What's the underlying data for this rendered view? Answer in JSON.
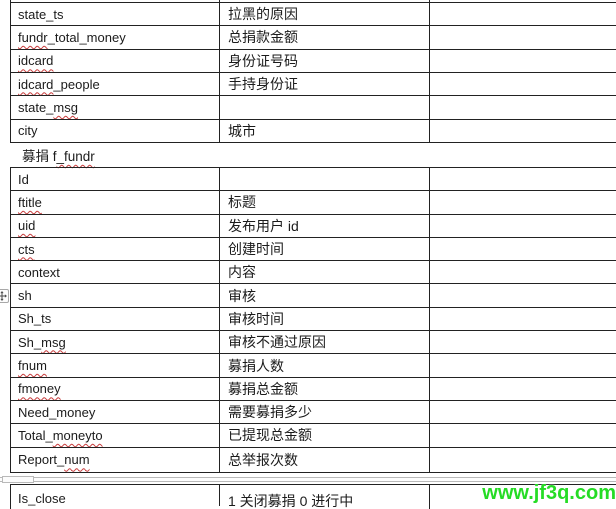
{
  "document": {
    "watermark": {
      "text": "www.jf3q.com"
    },
    "section_header": {
      "parts": [
        {
          "t": "募捐 f",
          "sp": false
        },
        {
          "t": "_fundr",
          "sp": true
        }
      ]
    },
    "tables": {
      "top_fields": {
        "rows": [
          {
            "field": [
              {
                "t": "state_ts",
                "sp": false
              }
            ],
            "desc": "拉黑的原因",
            "value": ""
          },
          {
            "field": [
              {
                "t": "fundr",
                "sp": true
              },
              {
                "t": "_total_money",
                "sp": false
              }
            ],
            "desc": "总捐款金额",
            "value": ""
          },
          {
            "field": [
              {
                "t": "idcard",
                "sp": true
              }
            ],
            "desc": "身份证号码",
            "value": ""
          },
          {
            "field": [
              {
                "t": "idcard",
                "sp": true
              },
              {
                "t": "_people",
                "sp": false
              }
            ],
            "desc": "手持身份证",
            "value": ""
          },
          {
            "field": [
              {
                "t": "state_",
                "sp": false
              },
              {
                "t": "msg",
                "sp": true
              }
            ],
            "desc": "",
            "value": ""
          },
          {
            "field": [
              {
                "t": "city",
                "sp": false
              }
            ],
            "desc": "城市",
            "value": ""
          }
        ]
      },
      "fundraise_fields": {
        "rows": [
          {
            "field": [
              {
                "t": "Id",
                "sp": false
              }
            ],
            "desc": "",
            "value": ""
          },
          {
            "field": [
              {
                "t": "ftitle",
                "sp": true
              }
            ],
            "desc": "标题",
            "value": ""
          },
          {
            "field": [
              {
                "t": "uid",
                "sp": true
              }
            ],
            "desc": "发布用户 id",
            "value": ""
          },
          {
            "field": [
              {
                "t": "cts",
                "sp": true
              }
            ],
            "desc": "创建时间",
            "value": ""
          },
          {
            "field": [
              {
                "t": "context",
                "sp": false
              }
            ],
            "desc": "内容",
            "value": ""
          },
          {
            "field": [
              {
                "t": "sh",
                "sp": false
              }
            ],
            "desc": "审核",
            "value": ""
          },
          {
            "field": [
              {
                "t": "Sh_ts",
                "sp": false
              }
            ],
            "desc": "审核时间",
            "value": ""
          },
          {
            "field": [
              {
                "t": "Sh_",
                "sp": false
              },
              {
                "t": "msg",
                "sp": true
              }
            ],
            "desc": "审核不通过原因",
            "value": ""
          },
          {
            "field": [
              {
                "t": "fnum",
                "sp": true
              }
            ],
            "desc": "募捐人数",
            "value": ""
          },
          {
            "field": [
              {
                "t": "fmoney",
                "sp": true
              }
            ],
            "desc": "募捐总金额",
            "value": ""
          },
          {
            "field": [
              {
                "t": "Need_money",
                "sp": false
              }
            ],
            "desc": "需要募捐多少",
            "value": ""
          },
          {
            "field": [
              {
                "t": "Total_",
                "sp": false
              },
              {
                "t": "moneyto",
                "sp": true
              }
            ],
            "desc": "已提现总金额",
            "value": ""
          },
          {
            "field": [
              {
                "t": "Report_",
                "sp": false
              },
              {
                "t": "num",
                "sp": true
              }
            ],
            "desc": "总举报次数",
            "value": ""
          }
        ]
      },
      "bottom_fields": {
        "rows": [
          {
            "field": [
              {
                "t": "Is_close",
                "sp": false
              }
            ],
            "desc": "1 关闭募捐 0 进行中",
            "value": ""
          }
        ]
      }
    }
  },
  "colors": {
    "table_border": "#222222",
    "text": "#1b1b1b",
    "spellcheck_red": "#c83c3c",
    "watermark_green": "#25dc25",
    "page_break_gray": "#b9b9b9",
    "handle_border_gray": "#a8a8a8",
    "handle_glyph_gray": "#4a4a4a"
  }
}
